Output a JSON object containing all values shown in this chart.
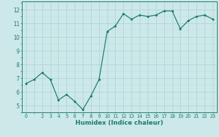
{
  "x": [
    0,
    1,
    2,
    3,
    4,
    5,
    6,
    7,
    8,
    9,
    10,
    11,
    12,
    13,
    14,
    15,
    16,
    17,
    18,
    19,
    20,
    21,
    22,
    23
  ],
  "y": [
    6.6,
    6.9,
    7.4,
    6.9,
    5.4,
    5.8,
    5.3,
    4.7,
    5.7,
    6.9,
    10.4,
    10.8,
    11.7,
    11.3,
    11.6,
    11.5,
    11.6,
    11.9,
    11.9,
    10.6,
    11.2,
    11.5,
    11.6,
    11.3
  ],
  "line_color": "#1a7a6e",
  "marker": "D",
  "marker_size": 1.8,
  "linewidth": 0.9,
  "bg_color": "#cce8e8",
  "grid_major_color": "#aad0d0",
  "grid_minor_color": "#bbdcdc",
  "xlabel": "Humidex (Indice chaleur)",
  "xlabel_fontsize": 6.5,
  "ylabel_ticks": [
    5,
    6,
    7,
    8,
    9,
    10,
    11,
    12
  ],
  "xtick_labels": [
    "0",
    "",
    "2",
    "3",
    "4",
    "5",
    "6",
    "7",
    "8",
    "9",
    "10",
    "11",
    "12",
    "13",
    "14",
    "15",
    "16",
    "17",
    "18",
    "19",
    "20",
    "21",
    "22",
    "23"
  ],
  "ylim": [
    4.5,
    12.6
  ],
  "xlim": [
    -0.5,
    23.5
  ],
  "ytick_fontsize": 5.5,
  "xtick_fontsize": 5.0
}
